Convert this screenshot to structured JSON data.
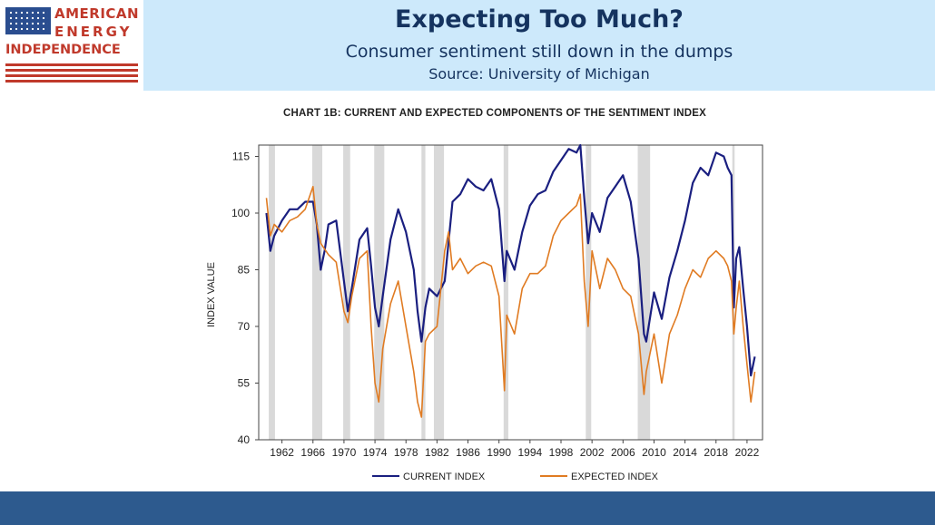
{
  "header": {
    "title": "Expecting Too Much?",
    "subtitle": "Consumer sentiment still down in the dumps",
    "source": "Source: University of Michigan"
  },
  "logo": {
    "line1": "AMERICAN",
    "line2": "ENERGY",
    "line3": "INDEPENDENCE",
    "icon": "us-flag-icon"
  },
  "colors": {
    "header_bg": "#cde9fb",
    "title": "#15335f",
    "current": "#1a1f80",
    "expected": "#e07b22",
    "recession": "#d9d9d9",
    "footer": "#2d5a8e"
  },
  "chart_data": {
    "type": "line",
    "title": "CHART 1B: CURRENT AND EXPECTED COMPONENTS OF THE SENTIMENT INDEX",
    "xlabel": "",
    "ylabel": "INDEX VALUE",
    "xlim": [
      1959,
      2024
    ],
    "ylim": [
      40,
      118
    ],
    "yticks": [
      40,
      55,
      70,
      85,
      100,
      115
    ],
    "xticks": [
      1962,
      1966,
      1970,
      1974,
      1978,
      1982,
      1986,
      1990,
      1994,
      1998,
      2002,
      2006,
      2010,
      2014,
      2018,
      2022
    ],
    "grid": false,
    "legend": "bottom",
    "recessions": [
      [
        1960.3,
        1961.1
      ],
      [
        1965.9,
        1967.2
      ],
      [
        1969.9,
        1970.8
      ],
      [
        1973.9,
        1975.2
      ],
      [
        1980.0,
        1980.5
      ],
      [
        1981.6,
        1982.9
      ],
      [
        1990.6,
        1991.2
      ],
      [
        2001.2,
        2001.9
      ],
      [
        2007.9,
        2009.5
      ],
      [
        2020.1,
        2020.4
      ]
    ],
    "series": [
      {
        "name": "CURRENT INDEX",
        "x": [
          1960,
          1960.5,
          1961,
          1962,
          1963,
          1964,
          1965,
          1966,
          1966.5,
          1967,
          1967.5,
          1968,
          1969,
          1970,
          1970.5,
          1971,
          1972,
          1973,
          1973.5,
          1974,
          1974.5,
          1975,
          1976,
          1977,
          1978,
          1979,
          1979.5,
          1980,
          1980.5,
          1981,
          1982,
          1983,
          1984,
          1985,
          1986,
          1987,
          1988,
          1989,
          1990,
          1990.7,
          1991,
          1992,
          1993,
          1994,
          1995,
          1996,
          1997,
          1998,
          1999,
          2000,
          2000.5,
          2001,
          2001.5,
          2002,
          2003,
          2004,
          2005,
          2006,
          2007,
          2008,
          2008.7,
          2009,
          2010,
          2011,
          2012,
          2013,
          2014,
          2015,
          2016,
          2017,
          2018,
          2019,
          2019.5,
          2020,
          2020.3,
          2020.6,
          2021,
          2021.5,
          2022,
          2022.5,
          2023
        ],
        "values": [
          100,
          90,
          94,
          98,
          101,
          101,
          103,
          103,
          97,
          85,
          90,
          97,
          98,
          82,
          74,
          80,
          93,
          96,
          86,
          75,
          70,
          78,
          93,
          101,
          95,
          85,
          74,
          66,
          75,
          80,
          78,
          82,
          103,
          105,
          109,
          107,
          106,
          109,
          101,
          82,
          90,
          85,
          95,
          102,
          105,
          106,
          111,
          114,
          117,
          116,
          118,
          104,
          92,
          100,
          95,
          104,
          107,
          110,
          103,
          88,
          68,
          66,
          79,
          72,
          83,
          90,
          98,
          108,
          112,
          110,
          116,
          115,
          112,
          110,
          75,
          88,
          91,
          80,
          70,
          57,
          62
        ]
      },
      {
        "name": "EXPECTED INDEX",
        "x": [
          1960,
          1960.5,
          1961,
          1962,
          1963,
          1964,
          1965,
          1966,
          1966.5,
          1967,
          1968,
          1969,
          1970,
          1970.5,
          1971,
          1972,
          1973,
          1973.5,
          1974,
          1974.5,
          1975,
          1976,
          1977,
          1978,
          1979,
          1979.5,
          1980,
          1980.5,
          1981,
          1982,
          1983,
          1983.5,
          1984,
          1985,
          1986,
          1987,
          1988,
          1989,
          1990,
          1990.7,
          1991,
          1992,
          1993,
          1994,
          1995,
          1996,
          1997,
          1998,
          1999,
          2000,
          2000.5,
          2001,
          2001.5,
          2002,
          2003,
          2004,
          2005,
          2006,
          2007,
          2008,
          2008.7,
          2009,
          2010,
          2011,
          2012,
          2013,
          2014,
          2015,
          2016,
          2017,
          2018,
          2019,
          2019.5,
          2020,
          2020.3,
          2020.6,
          2021,
          2021.5,
          2022,
          2022.5,
          2023
        ],
        "values": [
          104,
          94,
          97,
          95,
          98,
          99,
          101,
          107,
          97,
          92,
          89,
          87,
          74,
          71,
          78,
          88,
          90,
          70,
          55,
          50,
          64,
          76,
          82,
          70,
          58,
          50,
          46,
          66,
          68,
          70,
          90,
          95,
          85,
          88,
          84,
          86,
          87,
          86,
          78,
          53,
          73,
          68,
          80,
          84,
          84,
          86,
          94,
          98,
          100,
          102,
          105,
          82,
          70,
          90,
          80,
          88,
          85,
          80,
          78,
          68,
          52,
          58,
          68,
          55,
          68,
          73,
          80,
          85,
          83,
          88,
          90,
          88,
          86,
          82,
          68,
          75,
          82,
          70,
          60,
          50,
          58
        ]
      }
    ]
  }
}
